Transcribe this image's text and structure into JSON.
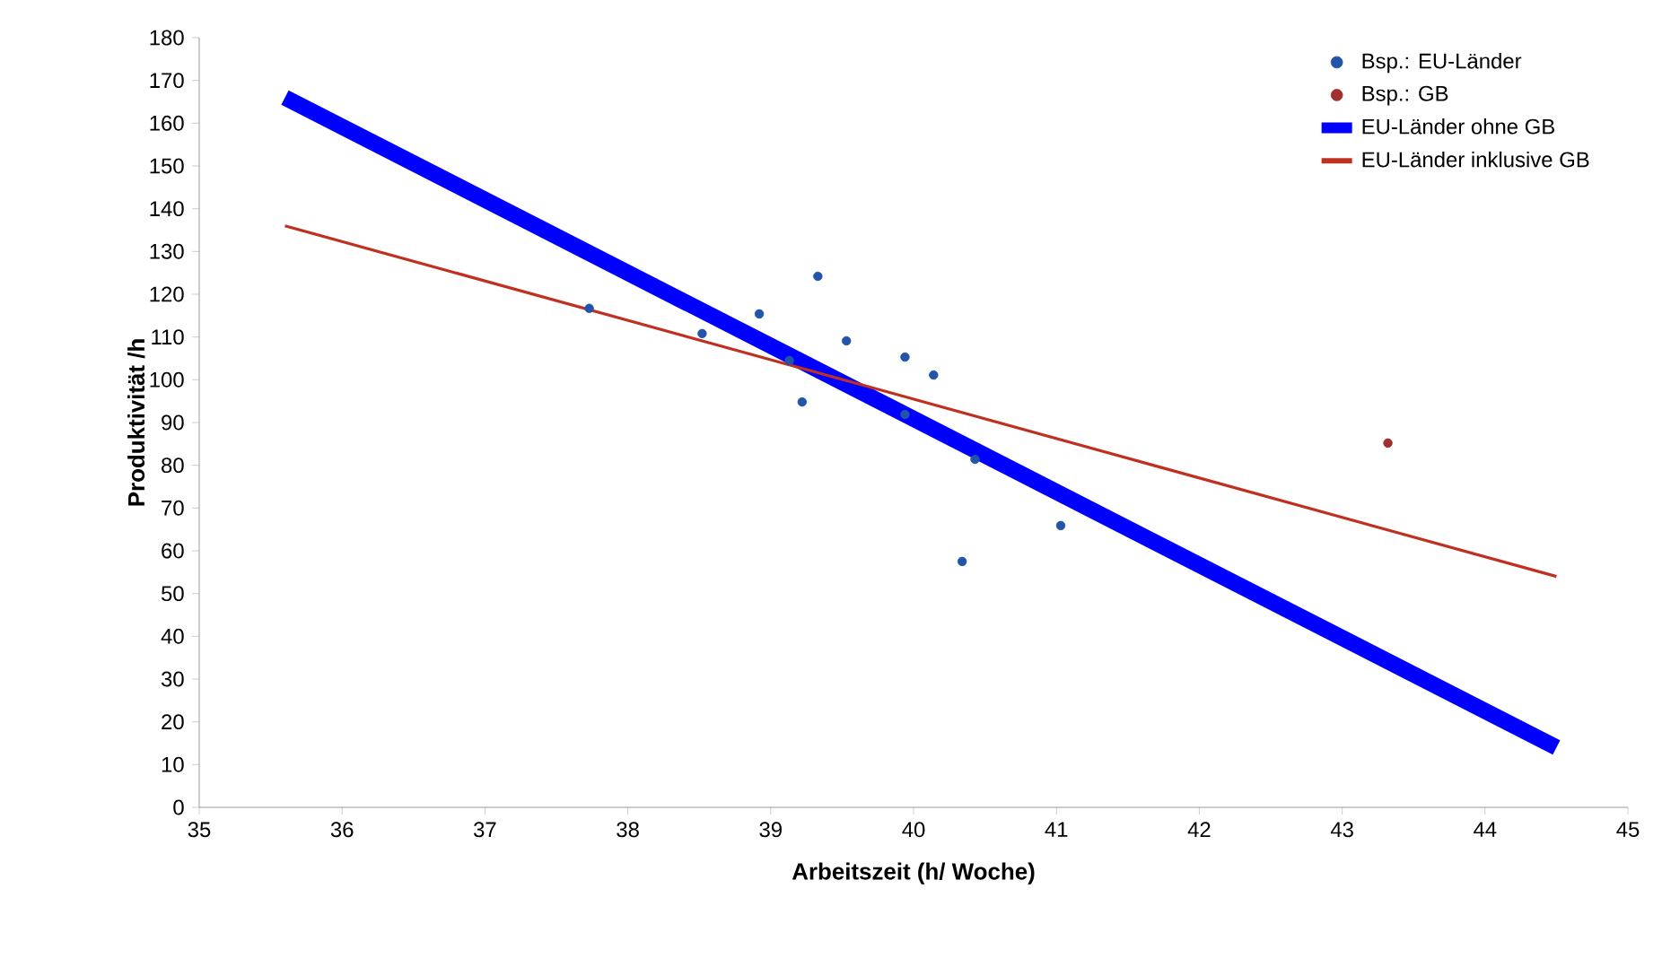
{
  "chart_data": {
    "type": "scatter",
    "xlabel": "Arbeitszeit (h/ Woche)",
    "ylabel": "Produktivität /h",
    "xlim": [
      35,
      45
    ],
    "ylim": [
      0,
      180
    ],
    "xticks": [
      35,
      36,
      37,
      38,
      39,
      40,
      41,
      42,
      43,
      44,
      45
    ],
    "yticks": [
      0,
      10,
      20,
      30,
      40,
      50,
      60,
      70,
      80,
      90,
      100,
      110,
      120,
      130,
      140,
      150,
      160,
      170,
      180
    ],
    "grid": false,
    "legend": "top right",
    "series": [
      {
        "name": "Bsp.: EU-Länder",
        "marker": "circle",
        "color": "#2255aa",
        "x": [
          37.73,
          38.52,
          38.92,
          39.33,
          39.13,
          39.22,
          39.53,
          39.94,
          40.14,
          39.94,
          40.43,
          40.34,
          41.03
        ],
        "values": [
          116.7,
          110.8,
          115.4,
          124.2,
          104.5,
          94.8,
          109.1,
          105.3,
          101.1,
          91.9,
          81.4,
          57.5,
          65.9
        ]
      },
      {
        "name": "Bsp.: GB",
        "marker": "circle",
        "color": "#a03030",
        "x": [
          43.32
        ],
        "values": [
          85.2
        ]
      },
      {
        "name": "EU-Länder ohne GB",
        "type": "line",
        "marker": "none",
        "color": "#0000ff",
        "x": [
          35.6,
          44.5
        ],
        "values": [
          166,
          14
        ]
      },
      {
        "name": "EU-Länder inklusive GB",
        "type": "line",
        "marker": "none",
        "color": "#c03020",
        "x": [
          35.6,
          44.5
        ],
        "values": [
          136,
          54
        ]
      }
    ]
  }
}
